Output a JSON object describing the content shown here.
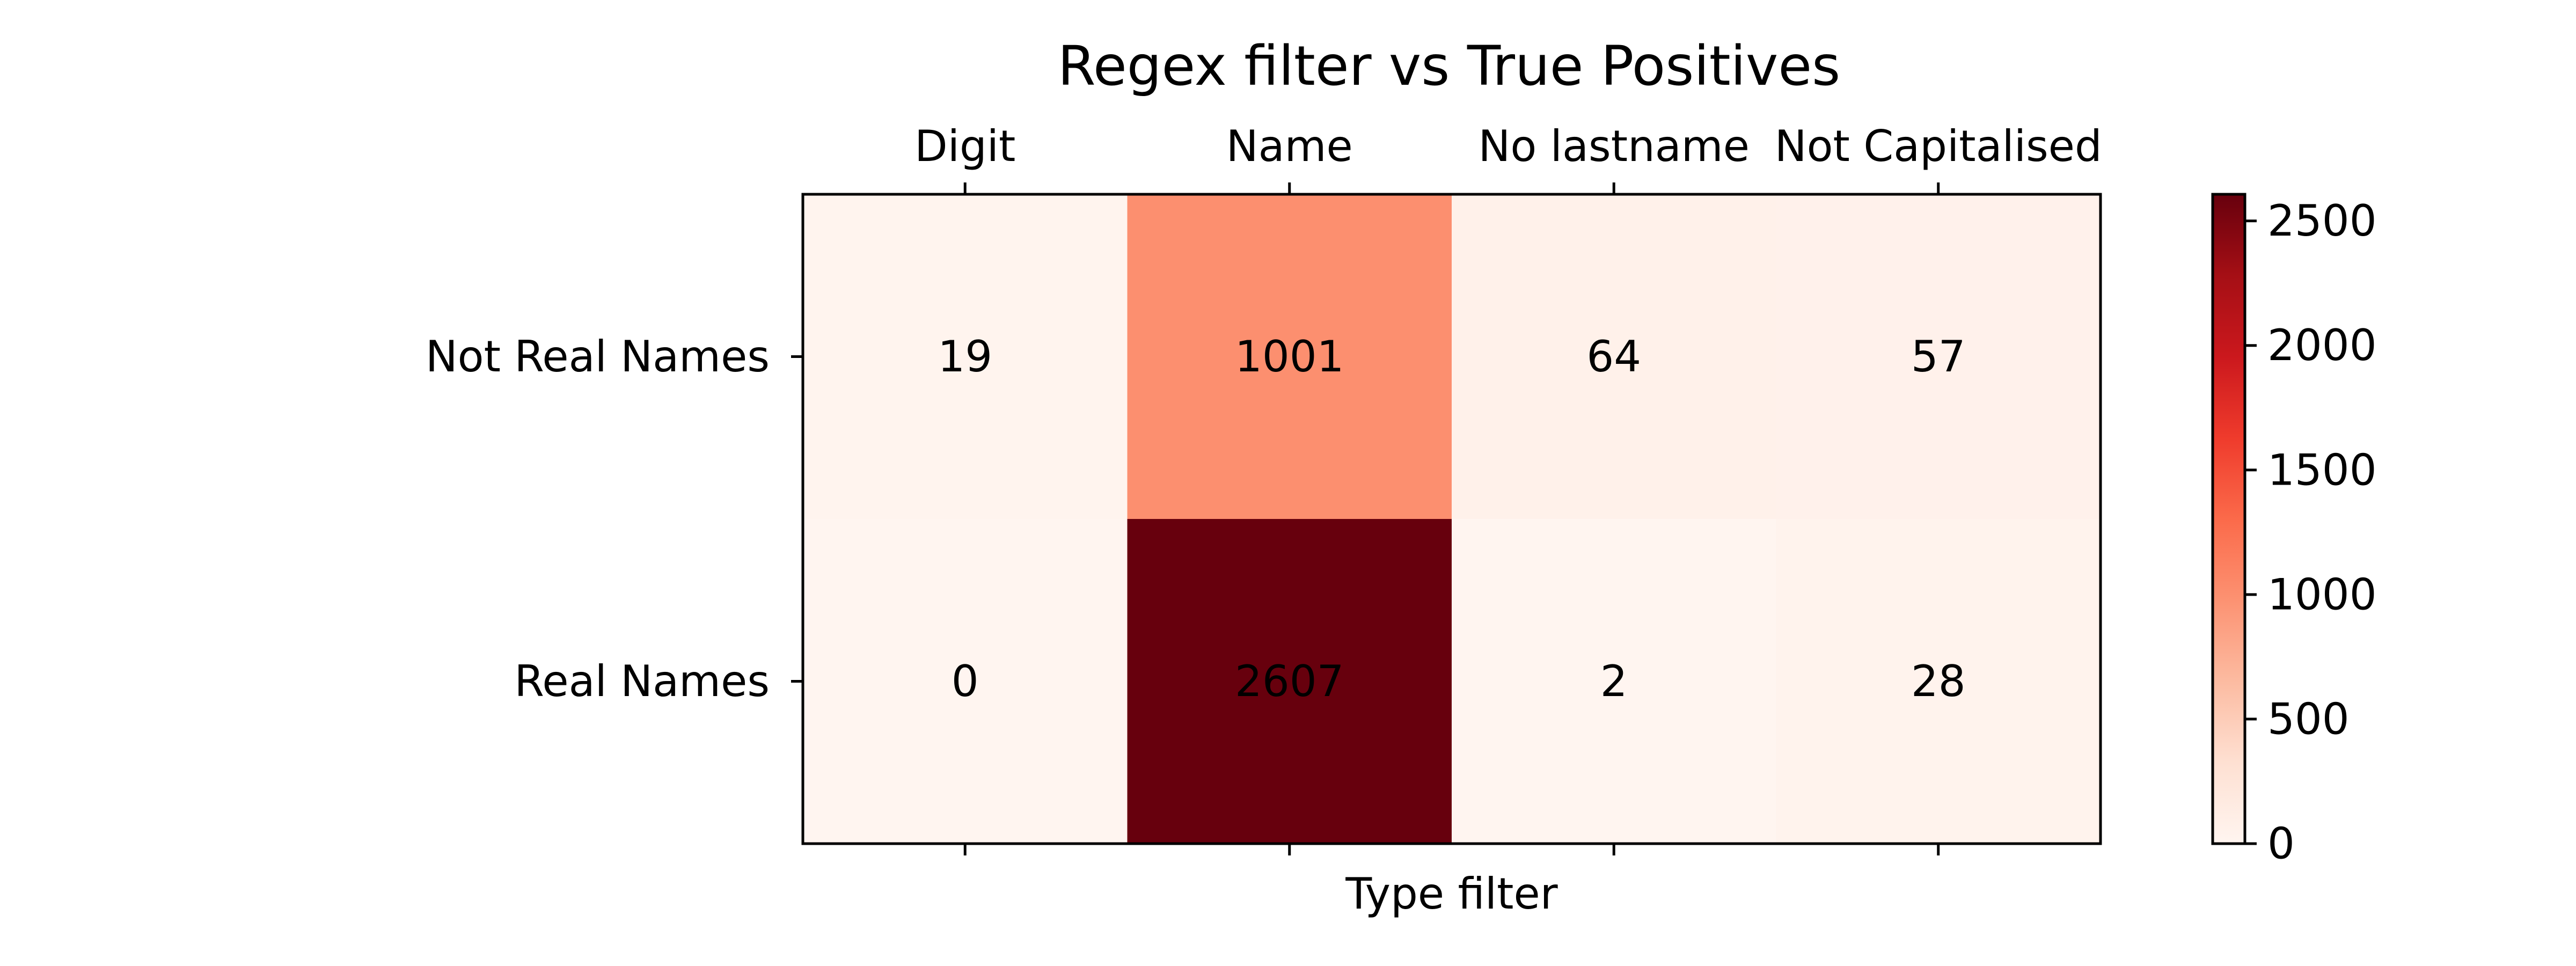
{
  "chart_data": {
    "type": "heatmap",
    "title": "Regex filter vs True Positives",
    "xlabel": "Type filter",
    "ylabel": "",
    "x_categories": [
      "Digit",
      "Name",
      "No lastname",
      "Not Capitalised"
    ],
    "y_categories": [
      "Not Real Names",
      "Real Names"
    ],
    "values": [
      [
        19,
        1001,
        64,
        57
      ],
      [
        0,
        2607,
        2,
        28
      ]
    ],
    "value_labels": [
      [
        "19",
        "1001",
        "64",
        "57"
      ],
      [
        "0",
        "2607",
        "2",
        "28"
      ]
    ],
    "colorscale": "Reds",
    "color_range": [
      0,
      2607
    ],
    "colorbar_ticks": [
      0,
      500,
      1000,
      1500,
      2000,
      2500
    ],
    "colorbar_tick_labels": [
      "0",
      "500",
      "1000",
      "1500",
      "2000",
      "2500"
    ],
    "x_tick_position": "top",
    "grid": false
  }
}
